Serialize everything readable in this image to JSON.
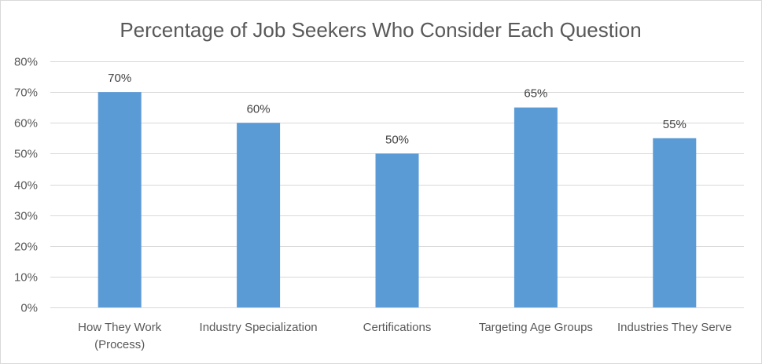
{
  "chart_data": {
    "type": "bar",
    "title": "Percentage of Job Seekers Who Consider Each Question",
    "categories": [
      [
        "How They Work",
        "(Process)"
      ],
      [
        "Industry Specialization"
      ],
      [
        "Certifications"
      ],
      [
        "Targeting Age Groups"
      ],
      [
        "Industries They Serve"
      ]
    ],
    "values": [
      70,
      60,
      50,
      65,
      55
    ],
    "data_labels": [
      "70%",
      "60%",
      "50%",
      "65%",
      "55%"
    ],
    "ylim": [
      0,
      80
    ],
    "yticks": [
      0,
      10,
      20,
      30,
      40,
      50,
      60,
      70,
      80
    ],
    "ytick_labels": [
      "0%",
      "10%",
      "20%",
      "30%",
      "40%",
      "50%",
      "60%",
      "70%",
      "80%"
    ],
    "grid": true,
    "bar_color": "#5b9bd5"
  }
}
